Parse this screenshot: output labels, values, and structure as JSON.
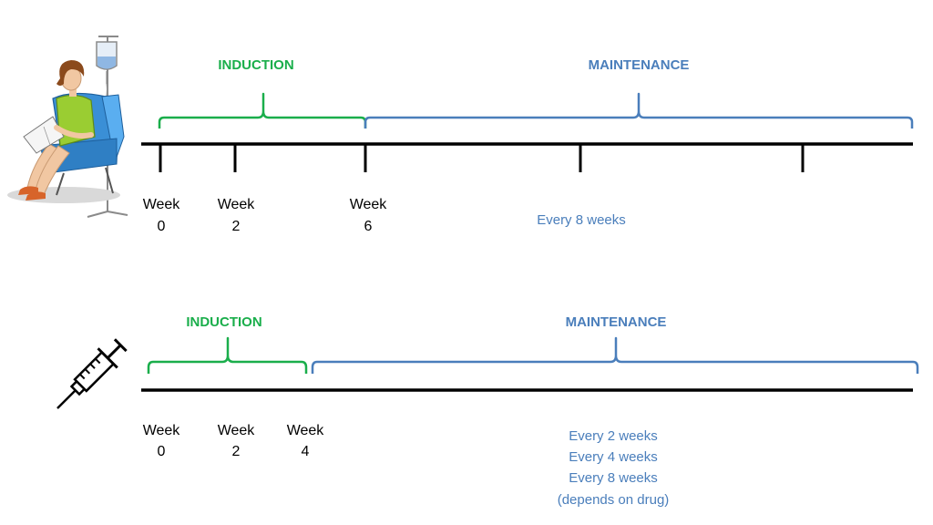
{
  "colors": {
    "induction": "#1AAE4B",
    "maintenance": "#4A7EBB",
    "axis": "#000000"
  },
  "infusion": {
    "icon": "infusion-patient-icon",
    "induction_label": "INDUCTION",
    "maintenance_label": "MAINTENANCE",
    "weeks": [
      {
        "word": "Week",
        "num": "0"
      },
      {
        "word": "Week",
        "num": "2"
      },
      {
        "word": "Week",
        "num": "6"
      }
    ],
    "frequency": "Every 8 weeks"
  },
  "injection": {
    "icon": "syringe-icon",
    "induction_label": "INDUCTION",
    "maintenance_label": "MAINTENANCE",
    "weeks": [
      {
        "word": "Week",
        "num": "0"
      },
      {
        "word": "Week",
        "num": "2"
      },
      {
        "word": "Week",
        "num": "4"
      }
    ],
    "frequency_lines": [
      "Every 2 weeks",
      "Every 4 weeks",
      "Every 8 weeks",
      "(depends on drug)"
    ]
  }
}
